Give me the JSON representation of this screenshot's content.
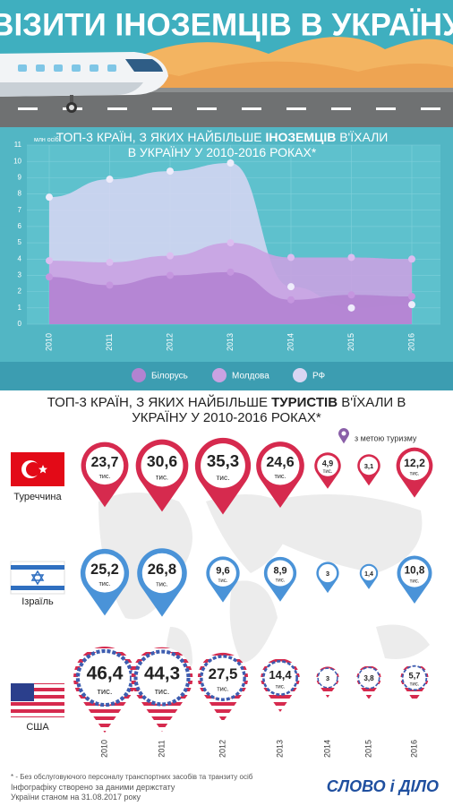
{
  "header": {
    "title": "ВІЗИТИ ІНОЗЕМЦІВ В УКРАЇНУ"
  },
  "chart_data": [
    {
      "type": "area",
      "title_parts": [
        "ТОП-3 КРАЇН, З ЯКИХ НАЙБІЛЬШЕ ",
        "ІНОЗЕМЦІВ",
        " В'ЇХАЛИ В УКРАЇНУ У 2010-2016 РОКАХ*"
      ],
      "y_label": "млн осіб",
      "categories": [
        "2010",
        "2011",
        "2012",
        "2013",
        "2014",
        "2015",
        "2016"
      ],
      "series": [
        {
          "name": "РФ",
          "color": "#d9d6f3",
          "values": [
            7.8,
            8.9,
            9.4,
            9.9,
            2.3,
            1.0,
            1.2
          ]
        },
        {
          "name": "Молдова",
          "color": "#c9a2e2",
          "values": [
            3.9,
            3.8,
            4.2,
            5.0,
            4.1,
            4.1,
            4.0
          ]
        },
        {
          "name": "Білорусь",
          "color": "#b283d1",
          "values": [
            2.9,
            2.4,
            3.0,
            3.2,
            1.5,
            1.8,
            1.7
          ]
        }
      ],
      "legend_order": [
        2,
        1,
        0
      ],
      "ylim": [
        0,
        11
      ],
      "yticks": [
        0,
        1,
        2,
        3,
        4,
        5,
        6,
        7,
        8,
        9,
        10,
        11
      ],
      "grid": true
    },
    {
      "type": "pin",
      "title_parts": [
        "ТОП-3 КРАЇН, З ЯКИХ НАЙБІЛЬШЕ ",
        "ТУРИСТІВ",
        " В'ЇХАЛИ В УКРАЇНУ У 2010-2016 РОКАХ*"
      ],
      "legend_label": "з метою туризму",
      "legend_color": "#8a5fa8",
      "unit_label": "тис.",
      "categories": [
        "2010",
        "2011",
        "2012",
        "2013",
        "2014",
        "2015",
        "2016"
      ],
      "series": [
        {
          "name": "Туреччина",
          "color": "#d62a4e",
          "style": "solid",
          "values": [
            23.7,
            30.6,
            35.3,
            24.6,
            4.9,
            3.1,
            12.2
          ],
          "value_labels": [
            "23,7",
            "30,6",
            "35,3",
            "24,6",
            "4,9",
            "3,1",
            "12,2"
          ]
        },
        {
          "name": "Ізраїль",
          "color": "#4a93d8",
          "style": "solid",
          "values": [
            25.2,
            26.8,
            9.6,
            8.9,
            3,
            1.4,
            10.8
          ],
          "value_labels": [
            "25,2",
            "26,8",
            "9,6",
            "8,9",
            "3",
            "1,4",
            "10,8"
          ]
        },
        {
          "name": "США",
          "color": "#d62a4e",
          "style": "stripes",
          "values": [
            46.4,
            44.3,
            27.5,
            14.4,
            3,
            3.8,
            5.7
          ],
          "value_labels": [
            "46,4",
            "44,3",
            "27,5",
            "14,4",
            "3",
            "3,8",
            "5,7"
          ]
        }
      ]
    }
  ],
  "footnote": "* - Без обслуговуючого персоналу транспортних засобів та транзиту осіб",
  "source": "Інфографіку створено за даними держстату України станом на 31.08.2017 року",
  "logo": "СЛОВО і ДІЛО"
}
